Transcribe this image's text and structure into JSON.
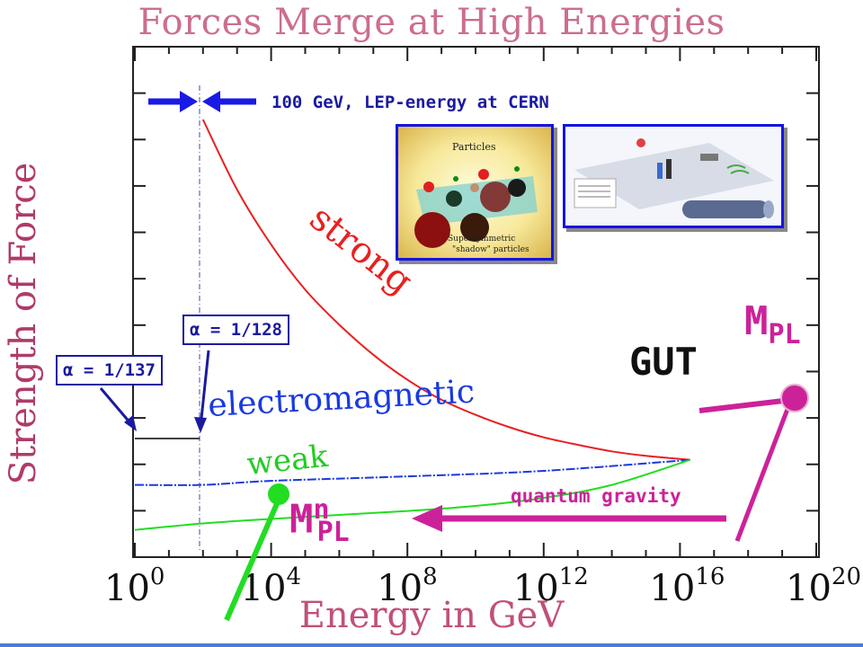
{
  "title": "Forces Merge at High Energies",
  "chart_data": {
    "type": "line",
    "xlabel": "Energy in GeV",
    "ylabel": "Strength of Force",
    "x_scale": "log",
    "x_ticks": [
      {
        "exp": "0",
        "value": 1
      },
      {
        "exp": "4",
        "value": 10000
      },
      {
        "exp": "8",
        "value": 100000000
      },
      {
        "exp": "12",
        "value": 1000000000000
      },
      {
        "exp": "16",
        "value": 10000000000000000
      },
      {
        "exp": "20",
        "value": 100000000000000000000
      }
    ],
    "x_log_range": [
      0,
      20
    ],
    "y_range": [
      0,
      1
    ],
    "series": [
      {
        "name": "strong",
        "color": "#e82020",
        "points": [
          [
            2,
            0.86
          ],
          [
            3,
            0.72
          ],
          [
            4,
            0.61
          ],
          [
            5,
            0.52
          ],
          [
            6,
            0.45
          ],
          [
            7,
            0.39
          ],
          [
            8,
            0.34
          ],
          [
            9,
            0.3
          ],
          [
            10,
            0.27
          ],
          [
            11,
            0.245
          ],
          [
            12,
            0.225
          ],
          [
            13,
            0.21
          ],
          [
            14,
            0.197
          ],
          [
            15,
            0.188
          ],
          [
            16.3,
            0.18
          ]
        ]
      },
      {
        "name": "electromagnetic",
        "color": "#1a3ae0",
        "points": [
          [
            0,
            0.13
          ],
          [
            2,
            0.13
          ],
          [
            4,
            0.138
          ],
          [
            8,
            0.147
          ],
          [
            12,
            0.158
          ],
          [
            16.3,
            0.18
          ]
        ]
      },
      {
        "name": "weak",
        "color": "#22dd22",
        "points": [
          [
            0,
            0.04
          ],
          [
            2,
            0.053
          ],
          [
            4,
            0.062
          ],
          [
            6,
            0.07
          ],
          [
            8,
            0.078
          ],
          [
            10,
            0.088
          ],
          [
            12,
            0.104
          ],
          [
            14,
            0.13
          ],
          [
            16.3,
            0.18
          ]
        ]
      }
    ]
  },
  "annotations": {
    "lep": "100 GeV, LEP-energy at CERN",
    "alpha137": "α = 1/137",
    "alpha128": "α = 1/128",
    "gut": "GUT",
    "mpl_main": "M",
    "mpl_sub": "PL",
    "mnpl_main": "M",
    "mnpl_sup": "n",
    "mnpl_sub": "PL",
    "qgravity": "quantum gravity"
  },
  "tick_base": "10",
  "thumbs": {
    "particles_label": "Particles",
    "susy_label_1": "Supersymmetric",
    "susy_label_2": "\"shadow\" particles"
  },
  "colors": {
    "title": "#cc6e8c",
    "axis_label": "#b03a6a",
    "magenta": "#cc2299",
    "blue": "#1a1aa0",
    "lep_arrow": "#1a1ae6"
  }
}
